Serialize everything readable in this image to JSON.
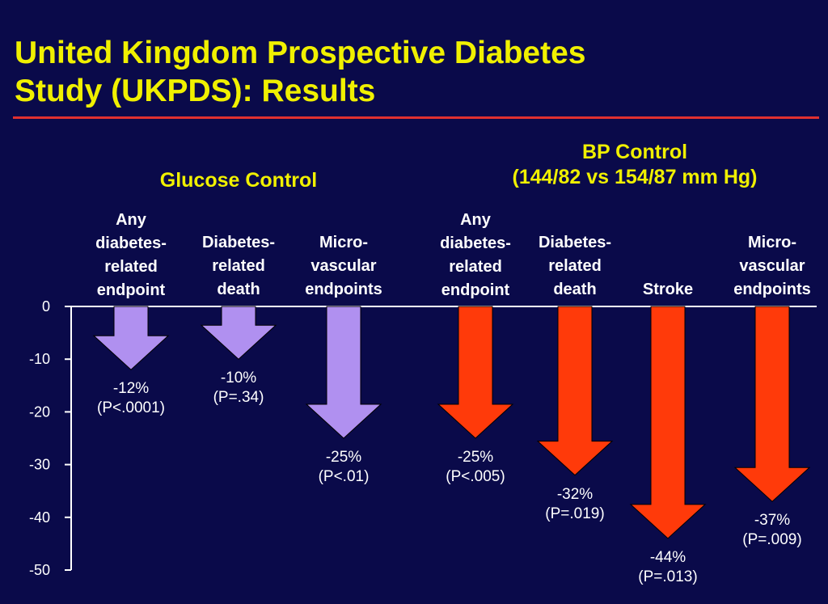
{
  "title": {
    "line1": "United Kingdom Prospective Diabetes",
    "line2": "Study (UKPDS): Results"
  },
  "groups": {
    "glucose": {
      "line1": "Glucose Control"
    },
    "bp": {
      "line1": "BP Control",
      "line2": "(144/82 vs 154/87 mm Hg)"
    }
  },
  "colors": {
    "background": "#0a0a4a",
    "title": "#f0f000",
    "rule": "#e03030",
    "glucose_arrow": "#b090f0",
    "bp_arrow": "#ff3a0a",
    "axis": "#ffffff"
  },
  "chart_data": {
    "type": "bar",
    "orientation": "vertical-downward-arrows",
    "ylim": [
      -50,
      0
    ],
    "yticks": [
      0,
      -10,
      -20,
      -30,
      -40,
      -50
    ],
    "ytick_labels": [
      "0",
      "-10",
      "-20",
      "-30",
      "-40",
      "-50"
    ],
    "grid": false,
    "legend": "none",
    "categories": [
      {
        "label_lines": [
          "Any",
          "diabetes-",
          "related",
          "endpoint"
        ],
        "group": "glucose",
        "value": -12,
        "value_label": "-12%",
        "p_label": "(P<.0001)"
      },
      {
        "label_lines": [
          "Diabetes-",
          "related",
          "death"
        ],
        "group": "glucose",
        "value": -10,
        "value_label": "-10%",
        "p_label": "(P=.34)"
      },
      {
        "label_lines": [
          "Micro-",
          "vascular",
          "endpoints"
        ],
        "group": "glucose",
        "value": -25,
        "value_label": "-25%",
        "p_label": "(P<.01)"
      },
      {
        "label_lines": [
          "Any",
          "diabetes-",
          "related",
          "endpoint"
        ],
        "group": "bp",
        "value": -25,
        "value_label": "-25%",
        "p_label": "(P<.005)"
      },
      {
        "label_lines": [
          "Diabetes-",
          "related",
          "death"
        ],
        "group": "bp",
        "value": -32,
        "value_label": "-32%",
        "p_label": "(P=.019)"
      },
      {
        "label_lines": [
          "Stroke"
        ],
        "group": "bp",
        "value": -44,
        "value_label": "-44%",
        "p_label": "(P=.013)"
      },
      {
        "label_lines": [
          "Micro-",
          "vascular",
          "endpoints"
        ],
        "group": "bp",
        "value": -37,
        "value_label": "-37%",
        "p_label": "(P=.009)"
      }
    ]
  }
}
